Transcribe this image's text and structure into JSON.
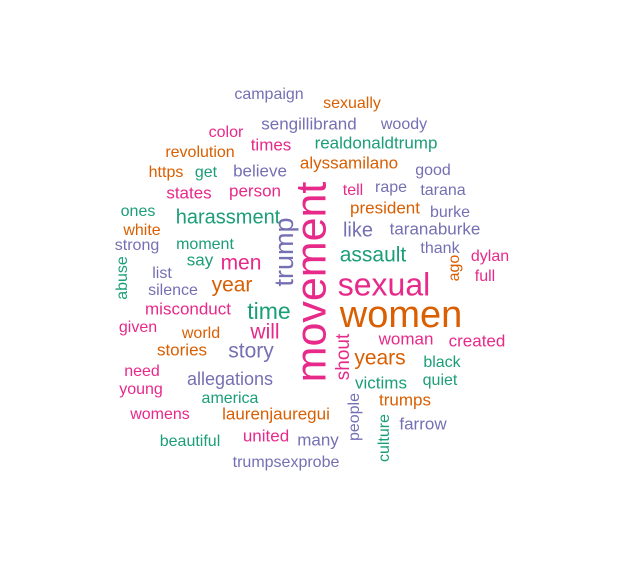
{
  "palette": {
    "green": "#1b9e77",
    "orange": "#d95f02",
    "purple": "#7570b3",
    "pink": "#e7298a"
  },
  "words": [
    {
      "text": "campaign",
      "color": "purple"
    },
    {
      "text": "sexually",
      "color": "orange"
    },
    {
      "text": "sengillibrand",
      "color": "purple"
    },
    {
      "text": "woody",
      "color": "purple"
    },
    {
      "text": "color",
      "color": "pink"
    },
    {
      "text": "revolution",
      "color": "orange"
    },
    {
      "text": "times",
      "color": "pink"
    },
    {
      "text": "realdonaldtrump",
      "color": "green"
    },
    {
      "text": "https",
      "color": "orange"
    },
    {
      "text": "get",
      "color": "green"
    },
    {
      "text": "believe",
      "color": "purple"
    },
    {
      "text": "alyssamilano",
      "color": "orange"
    },
    {
      "text": "good",
      "color": "purple"
    },
    {
      "text": "states",
      "color": "pink"
    },
    {
      "text": "person",
      "color": "pink"
    },
    {
      "text": "tell",
      "color": "pink"
    },
    {
      "text": "rape",
      "color": "purple"
    },
    {
      "text": "tarana",
      "color": "purple"
    },
    {
      "text": "ones",
      "color": "green"
    },
    {
      "text": "harassment",
      "color": "green"
    },
    {
      "text": "president",
      "color": "orange"
    },
    {
      "text": "burke",
      "color": "purple"
    },
    {
      "text": "white",
      "color": "orange"
    },
    {
      "text": "like",
      "color": "purple"
    },
    {
      "text": "taranaburke",
      "color": "purple"
    },
    {
      "text": "strong",
      "color": "purple"
    },
    {
      "text": "moment",
      "color": "green"
    },
    {
      "text": "assault",
      "color": "green"
    },
    {
      "text": "thank",
      "color": "purple"
    },
    {
      "text": "dylan",
      "color": "pink"
    },
    {
      "text": "say",
      "color": "green"
    },
    {
      "text": "men",
      "color": "pink"
    },
    {
      "text": "list",
      "color": "purple"
    },
    {
      "text": "year",
      "color": "orange"
    },
    {
      "text": "sexual",
      "color": "pink"
    },
    {
      "text": "full",
      "color": "pink"
    },
    {
      "text": "silence",
      "color": "purple"
    },
    {
      "text": "misconduct",
      "color": "pink"
    },
    {
      "text": "time",
      "color": "green"
    },
    {
      "text": "women",
      "color": "orange"
    },
    {
      "text": "given",
      "color": "pink"
    },
    {
      "text": "world",
      "color": "orange"
    },
    {
      "text": "will",
      "color": "pink"
    },
    {
      "text": "woman",
      "color": "pink"
    },
    {
      "text": "created",
      "color": "pink"
    },
    {
      "text": "stories",
      "color": "orange"
    },
    {
      "text": "story",
      "color": "purple"
    },
    {
      "text": "years",
      "color": "orange"
    },
    {
      "text": "black",
      "color": "green"
    },
    {
      "text": "need",
      "color": "pink"
    },
    {
      "text": "quiet",
      "color": "green"
    },
    {
      "text": "allegations",
      "color": "purple"
    },
    {
      "text": "victims",
      "color": "green"
    },
    {
      "text": "young",
      "color": "pink"
    },
    {
      "text": "america",
      "color": "green"
    },
    {
      "text": "trumps",
      "color": "orange"
    },
    {
      "text": "womens",
      "color": "pink"
    },
    {
      "text": "laurenjauregui",
      "color": "orange"
    },
    {
      "text": "farrow",
      "color": "purple"
    },
    {
      "text": "beautiful",
      "color": "green"
    },
    {
      "text": "united",
      "color": "pink"
    },
    {
      "text": "many",
      "color": "purple"
    },
    {
      "text": "trumpsexprobe",
      "color": "purple"
    },
    {
      "text": "abuse",
      "color": "green"
    },
    {
      "text": "trump",
      "color": "purple"
    },
    {
      "text": "movement",
      "color": "pink"
    },
    {
      "text": "shout",
      "color": "pink"
    },
    {
      "text": "ago",
      "color": "orange"
    },
    {
      "text": "people",
      "color": "purple"
    },
    {
      "text": "culture",
      "color": "green"
    }
  ]
}
